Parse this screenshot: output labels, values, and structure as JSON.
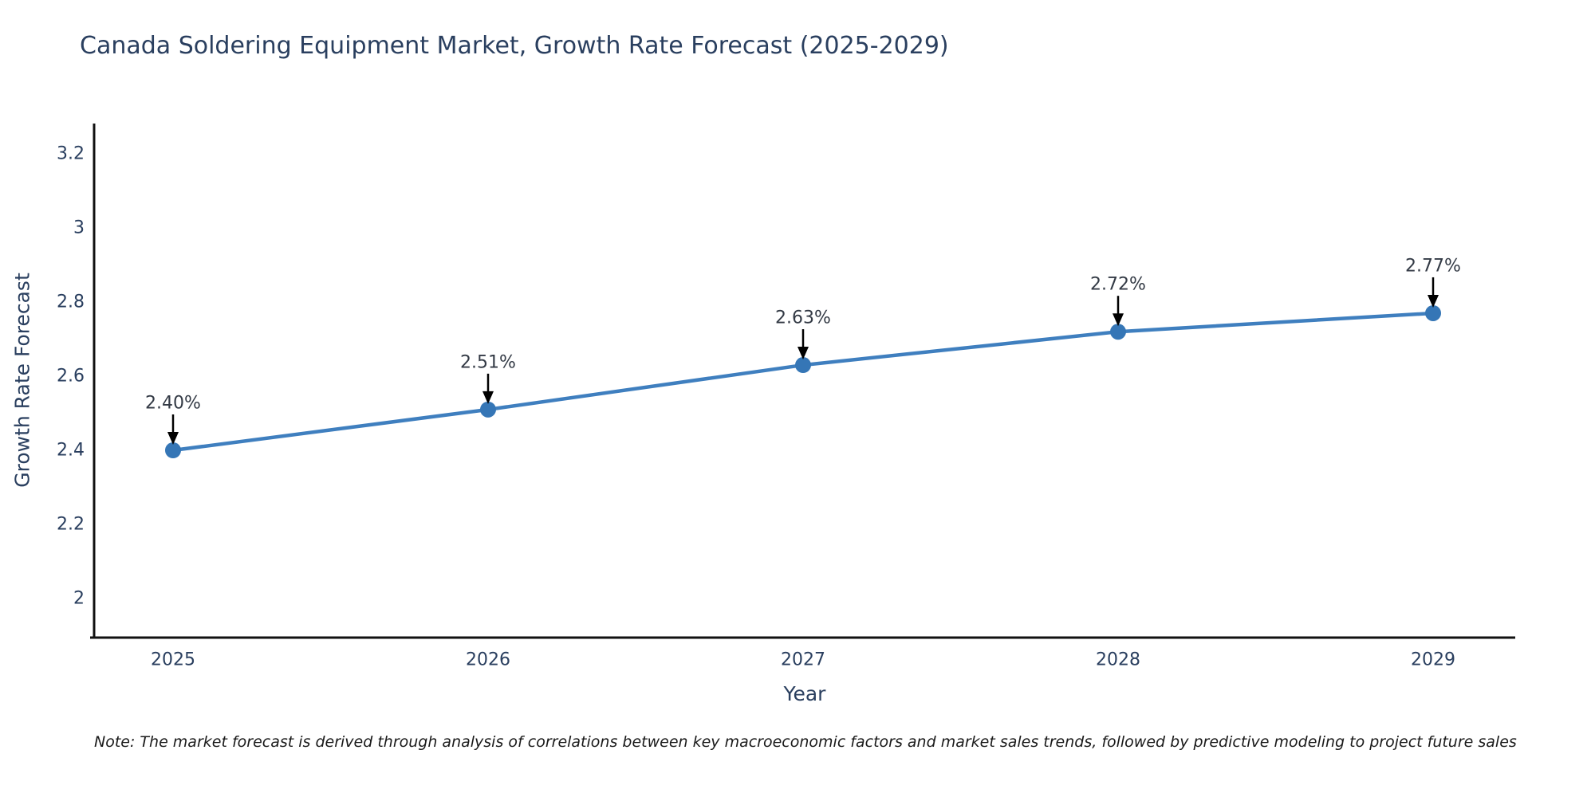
{
  "title": "Canada Soldering Equipment Market, Growth Rate Forecast (2025-2029)",
  "note": "Note: The market forecast is derived through analysis of correlations between key macroeconomic factors and market sales trends, followed by predictive modeling to project future sales",
  "chart_data": {
    "type": "line",
    "title": "Canada Soldering Equipment Market, Growth Rate Forecast (2025-2029)",
    "xlabel": "Year",
    "ylabel": "Growth Rate Forecast",
    "x": [
      "2025",
      "2026",
      "2027",
      "2028",
      "2029"
    ],
    "series": [
      {
        "name": "Growth Rate Forecast",
        "values": [
          2.4,
          2.51,
          2.63,
          2.72,
          2.77
        ],
        "point_labels": [
          "2.40%",
          "2.51%",
          "2.63%",
          "2.72%",
          "2.77%"
        ]
      }
    ],
    "yticks": [
      2,
      2.2,
      2.4,
      2.6,
      2.8,
      3,
      3.2
    ],
    "ytick_labels": [
      "2",
      "2.2",
      "2.4",
      "2.6",
      "2.8",
      "3",
      "3.2"
    ],
    "ylim": [
      1.89,
      3.29
    ],
    "grid": false,
    "legend_position": "none",
    "colors": {
      "line": "#3f7fbf",
      "marker": "#3576b6",
      "axis": "#111111",
      "text": "#2a3f5f",
      "annotation_arrow": "#000000"
    }
  }
}
